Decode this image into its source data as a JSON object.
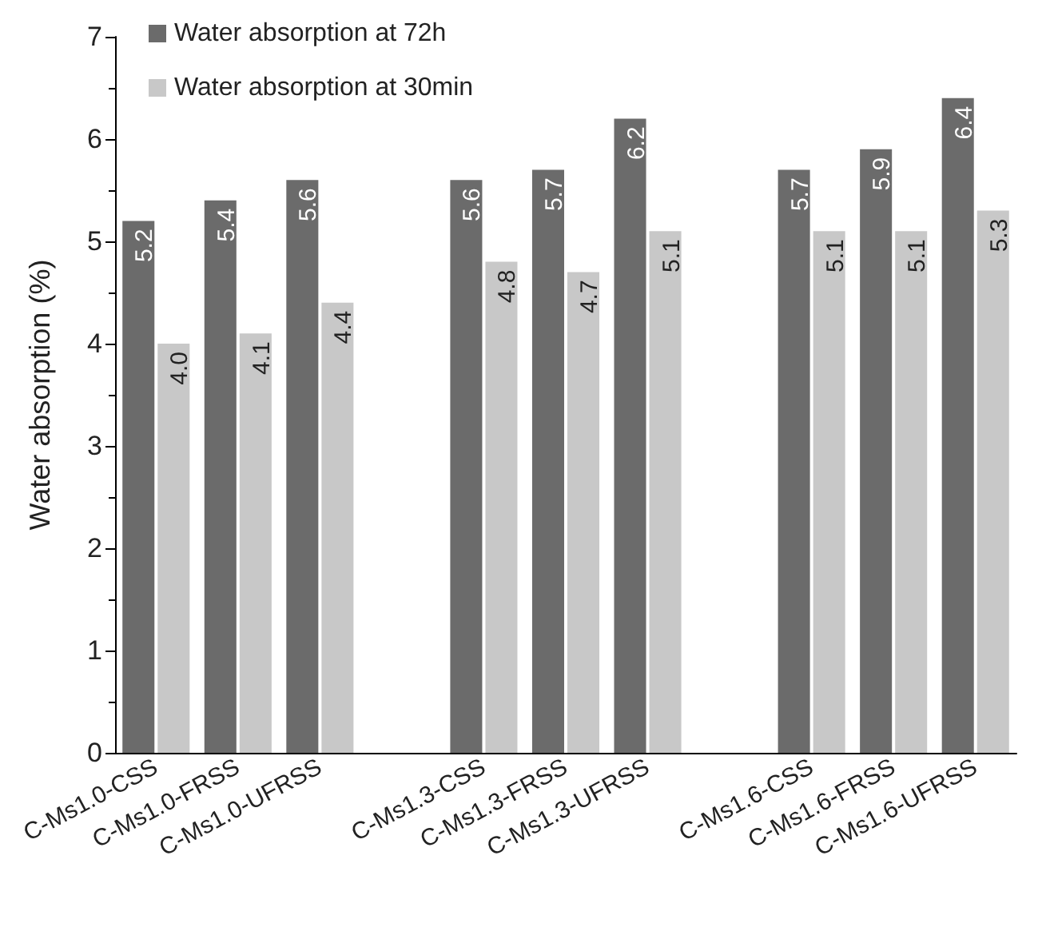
{
  "chart_data": {
    "type": "bar",
    "ylabel": "Water absorption (%)",
    "categories": [
      "C-Ms1.0-CSS",
      "C-Ms1.0-FRSS",
      "C-Ms1.0-UFRSS",
      null,
      "C-Ms1.3-CSS",
      "C-Ms1.3-FRSS",
      "C-Ms1.3-UFRSS",
      null,
      "C-Ms1.6-CSS",
      "C-Ms1.6-FRSS",
      "C-Ms1.6-UFRSS"
    ],
    "series": [
      {
        "name": "Water absorption at 72h",
        "color": "#6b6b6b",
        "values": [
          5.2,
          5.4,
          5.6,
          null,
          5.6,
          5.7,
          6.2,
          null,
          5.7,
          5.9,
          6.4
        ],
        "value_labels": [
          "5.2",
          "5.4",
          "5.6",
          null,
          "5.6",
          "5.7",
          "6.2",
          null,
          "5.7",
          "5.9",
          "6.4"
        ]
      },
      {
        "name": "Water absorption at 30min",
        "color": "#c8c8c8",
        "values": [
          4.0,
          4.1,
          4.4,
          null,
          4.8,
          4.7,
          5.1,
          null,
          5.1,
          5.1,
          5.3
        ],
        "value_labels": [
          "4.0",
          "4.1",
          "4.4",
          null,
          "4.8",
          "4.7",
          "5.1",
          null,
          "5.1",
          "5.1",
          "5.3"
        ]
      }
    ],
    "ylim": [
      0,
      7
    ],
    "yticks": [
      0,
      1,
      2,
      3,
      4,
      5,
      6,
      7
    ],
    "grid": false,
    "legend": "top left"
  }
}
